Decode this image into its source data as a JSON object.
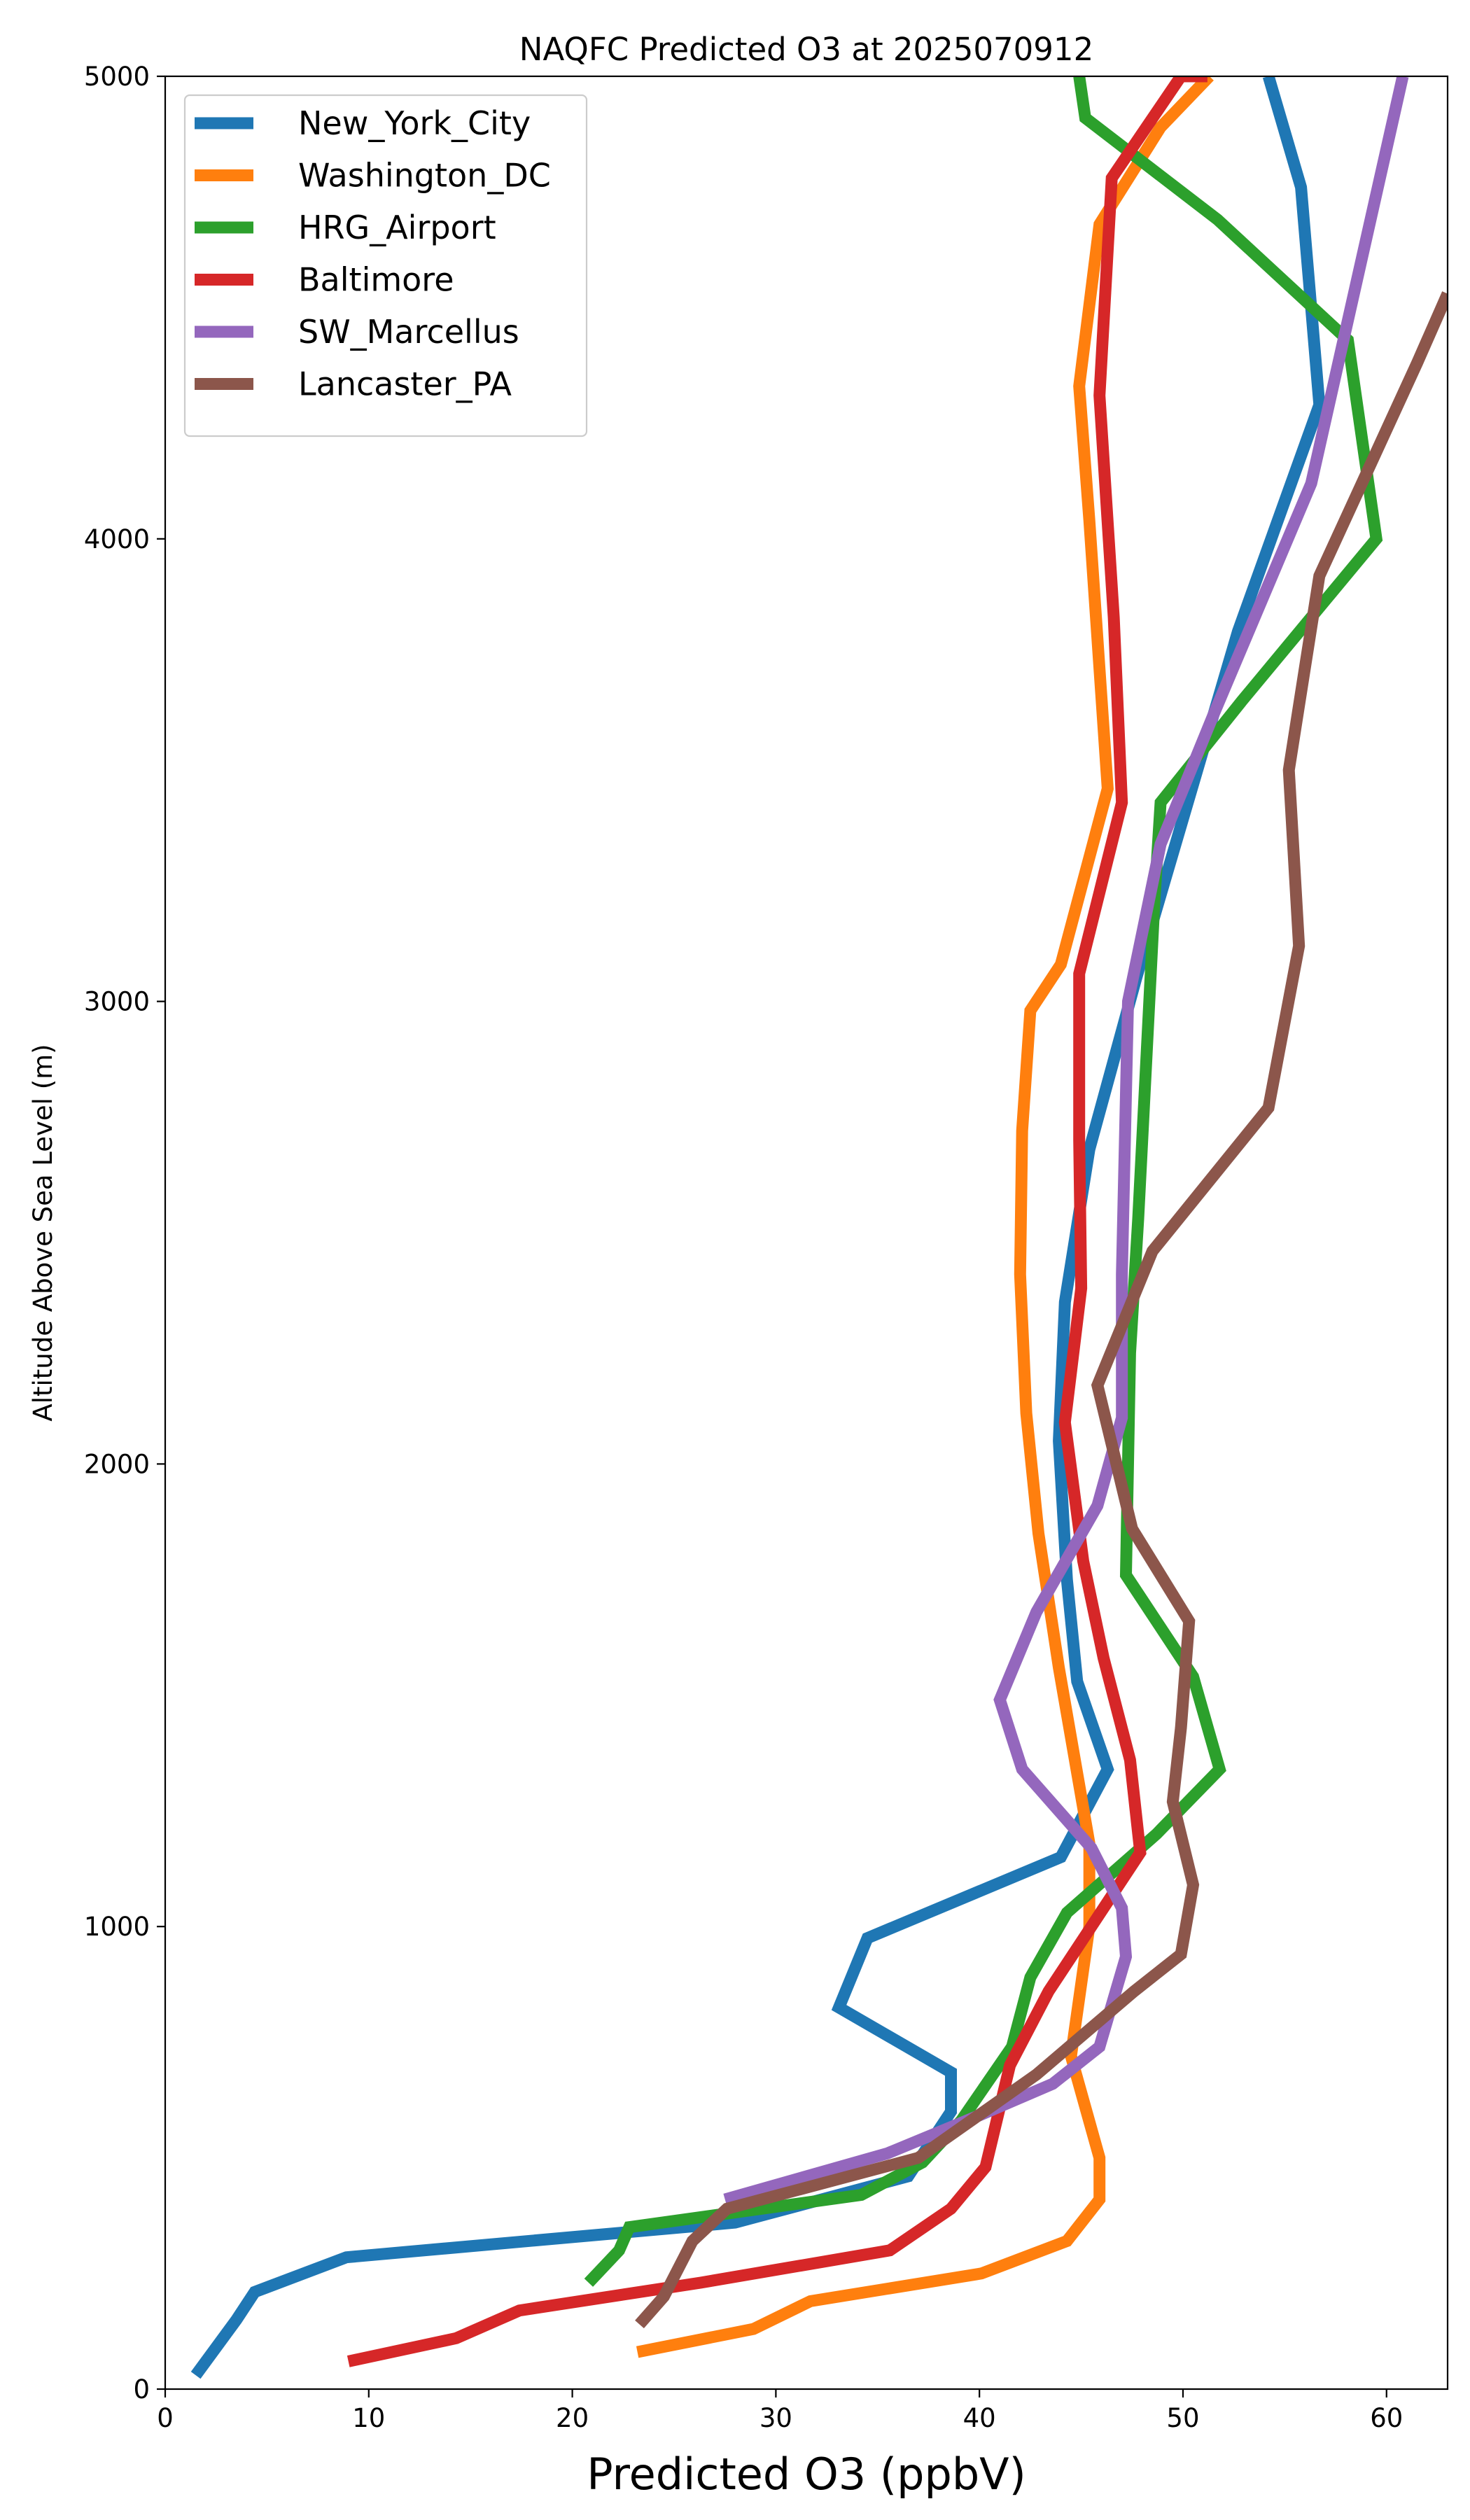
{
  "chart_data": {
    "type": "line",
    "title": "NAQFC Predicted O3 at 2025070912",
    "xlabel": "Predicted O3 (ppbV)",
    "ylabel": "Altitude Above Sea Level (m)",
    "xlim": [
      0,
      63
    ],
    "ylim": [
      0,
      5000
    ],
    "xticks": [
      0,
      10,
      20,
      30,
      40,
      50,
      60
    ],
    "yticks": [
      0,
      1000,
      2000,
      3000,
      4000,
      5000
    ],
    "grid": false,
    "legend_position": "top-left",
    "series": [
      {
        "name": "New_York_City",
        "color": "#1f77b4",
        "x": [
          1.5,
          3.5,
          4.4,
          8.9,
          28.0,
          36.5,
          38.6,
          38.6,
          33.1,
          34.5,
          44.0,
          46.3,
          44.8,
          44.3,
          43.9,
          44.2,
          45.4,
          47.7,
          52.7,
          56.7,
          55.8,
          54.2
        ],
        "y": [
          30,
          150,
          210,
          285,
          360,
          460,
          600,
          685,
          825,
          975,
          1150,
          1340,
          1530,
          1750,
          2050,
          2350,
          2680,
          3050,
          3800,
          4290,
          4760,
          5000
        ]
      },
      {
        "name": "Washington_DC",
        "color": "#ff7f0e",
        "x": [
          23.2,
          28.9,
          31.7,
          40.1,
          44.3,
          45.9,
          45.9,
          44.5,
          45.4,
          45.4,
          43.9,
          42.9,
          42.3,
          42.0,
          42.1,
          42.5,
          44.0,
          46.3,
          45.4,
          44.9,
          45.9,
          48.9,
          51.3
        ],
        "y": [
          80,
          130,
          190,
          250,
          320,
          410,
          500,
          720,
          1000,
          1180,
          1560,
          1850,
          2110,
          2410,
          2720,
          2980,
          3080,
          3460,
          4040,
          4330,
          4680,
          4890,
          5000
        ]
      },
      {
        "name": "HRG_Airport",
        "color": "#2ca02c",
        "x": [
          20.8,
          22.3,
          22.8,
          34.2,
          37.2,
          39.1,
          41.6,
          42.5,
          44.3,
          48.7,
          51.8,
          50.5,
          47.2,
          47.4,
          47.8,
          48.6,
          48.9,
          52.9,
          59.5,
          58.1,
          51.7,
          45.2,
          44.9
        ],
        "y": [
          230,
          300,
          350,
          420,
          490,
          580,
          740,
          890,
          1030,
          1200,
          1340,
          1540,
          1760,
          2240,
          2530,
          3220,
          3430,
          3650,
          4000,
          4430,
          4690,
          4910,
          5000
        ]
      },
      {
        "name": "Baltimore",
        "color": "#d62728",
        "x": [
          9.0,
          14.3,
          17.4,
          26.3,
          35.6,
          38.6,
          40.3,
          41.5,
          43.4,
          47.9,
          47.4,
          46.1,
          45.1,
          44.2,
          45.0,
          44.9,
          44.9,
          47.0,
          46.6,
          45.9,
          46.5,
          49.9,
          51.2
        ],
        "y": [
          60,
          110,
          170,
          230,
          300,
          390,
          480,
          700,
          860,
          1160,
          1360,
          1580,
          1790,
          2090,
          2380,
          2700,
          3060,
          3430,
          3830,
          4310,
          4780,
          5000,
          5000
        ]
      },
      {
        "name": "SW_Marcellus",
        "color": "#9467bd",
        "x": [
          27.5,
          35.5,
          39.9,
          43.6,
          45.9,
          47.2,
          47.0,
          45.5,
          42.1,
          41.0,
          42.8,
          45.8,
          47.0,
          47.0,
          47.3,
          48.9,
          51.5,
          56.3,
          60.8
        ],
        "y": [
          410,
          510,
          590,
          660,
          740,
          935,
          1040,
          1170,
          1340,
          1490,
          1680,
          1910,
          2100,
          2410,
          3000,
          3340,
          3620,
          4120,
          5000
        ]
      },
      {
        "name": "Lancaster_PA",
        "color": "#8c564b",
        "x": [
          23.3,
          24.5,
          25.9,
          27.6,
          37.0,
          42.8,
          47.6,
          49.9,
          50.5,
          49.5,
          49.9,
          50.3,
          47.5,
          45.8,
          48.5,
          54.2,
          55.7,
          55.2,
          56.7,
          61.5,
          63.0
        ],
        "y": [
          140,
          200,
          320,
          390,
          500,
          680,
          860,
          940,
          1090,
          1270,
          1430,
          1660,
          1860,
          2170,
          2460,
          2770,
          3120,
          3500,
          3920,
          4380,
          4530
        ]
      }
    ]
  }
}
